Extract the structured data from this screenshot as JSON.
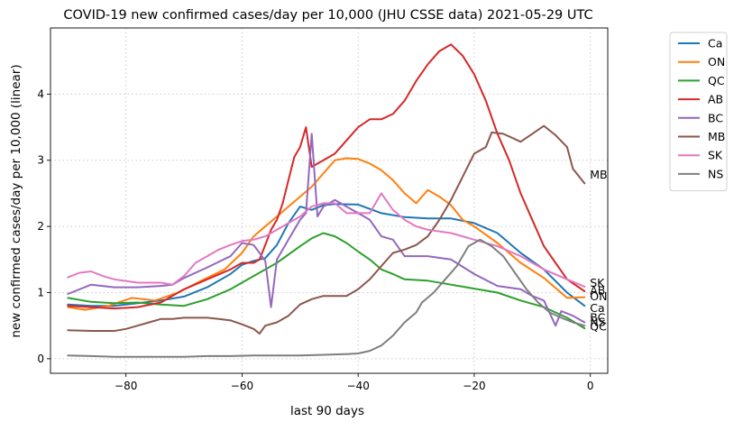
{
  "chart_data": {
    "type": "line",
    "title": "COVID-19 new confirmed cases/day per 10,000 (JHU CSSE data) 2021-05-29 UTC",
    "xlabel": "last 90 days",
    "ylabel": "new confirmed cases/day per 10,000 (linear)",
    "xlim": [
      -93,
      3
    ],
    "ylim": [
      -0.22,
      5.0
    ],
    "x_ticks": [
      -80,
      -60,
      -40,
      -20,
      0
    ],
    "x_tick_labels": [
      "−80",
      "−60",
      "−40",
      "−20",
      "0"
    ],
    "y_ticks": [
      0,
      1,
      2,
      3,
      4
    ],
    "y_tick_labels": [
      "0",
      "1",
      "2",
      "3",
      "4"
    ],
    "grid": true,
    "legend_position": "outside-right-top",
    "series": [
      {
        "name": "Ca",
        "color": "#1f77b4",
        "end_label": "Ca",
        "points": [
          [
            -90,
            0.82
          ],
          [
            -86,
            0.8
          ],
          [
            -82,
            0.8
          ],
          [
            -78,
            0.84
          ],
          [
            -74,
            0.88
          ],
          [
            -70,
            0.94
          ],
          [
            -66,
            1.08
          ],
          [
            -62,
            1.28
          ],
          [
            -60,
            1.42
          ],
          [
            -58,
            1.48
          ],
          [
            -56,
            1.52
          ],
          [
            -54,
            1.72
          ],
          [
            -52,
            2.05
          ],
          [
            -50,
            2.3
          ],
          [
            -48,
            2.25
          ],
          [
            -46,
            2.32
          ],
          [
            -44,
            2.34
          ],
          [
            -40,
            2.33
          ],
          [
            -36,
            2.2
          ],
          [
            -32,
            2.14
          ],
          [
            -28,
            2.12
          ],
          [
            -24,
            2.12
          ],
          [
            -20,
            2.05
          ],
          [
            -16,
            1.9
          ],
          [
            -12,
            1.6
          ],
          [
            -8,
            1.35
          ],
          [
            -4,
            1.0
          ],
          [
            -1,
            0.8
          ]
        ]
      },
      {
        "name": "ON",
        "color": "#ff7f0e",
        "end_label": "ON",
        "points": [
          [
            -90,
            0.78
          ],
          [
            -87,
            0.74
          ],
          [
            -83,
            0.8
          ],
          [
            -79,
            0.92
          ],
          [
            -75,
            0.88
          ],
          [
            -71,
            1.0
          ],
          [
            -67,
            1.18
          ],
          [
            -63,
            1.35
          ],
          [
            -60,
            1.6
          ],
          [
            -58,
            1.85
          ],
          [
            -56,
            2.0
          ],
          [
            -54,
            2.15
          ],
          [
            -52,
            2.3
          ],
          [
            -50,
            2.45
          ],
          [
            -48,
            2.6
          ],
          [
            -46,
            2.8
          ],
          [
            -44,
            3.0
          ],
          [
            -42,
            3.03
          ],
          [
            -40,
            3.02
          ],
          [
            -38,
            2.95
          ],
          [
            -36,
            2.85
          ],
          [
            -34,
            2.7
          ],
          [
            -32,
            2.5
          ],
          [
            -30,
            2.35
          ],
          [
            -28,
            2.55
          ],
          [
            -26,
            2.45
          ],
          [
            -24,
            2.32
          ],
          [
            -22,
            2.1
          ],
          [
            -20,
            2.0
          ],
          [
            -16,
            1.75
          ],
          [
            -12,
            1.45
          ],
          [
            -8,
            1.22
          ],
          [
            -4,
            0.92
          ],
          [
            -1,
            0.93
          ]
        ]
      },
      {
        "name": "QC",
        "color": "#2ca02c",
        "end_label": "QC",
        "points": [
          [
            -90,
            0.92
          ],
          [
            -86,
            0.86
          ],
          [
            -82,
            0.84
          ],
          [
            -78,
            0.85
          ],
          [
            -74,
            0.82
          ],
          [
            -70,
            0.8
          ],
          [
            -66,
            0.9
          ],
          [
            -62,
            1.05
          ],
          [
            -58,
            1.25
          ],
          [
            -54,
            1.45
          ],
          [
            -50,
            1.7
          ],
          [
            -48,
            1.82
          ],
          [
            -46,
            1.9
          ],
          [
            -44,
            1.85
          ],
          [
            -42,
            1.75
          ],
          [
            -40,
            1.62
          ],
          [
            -38,
            1.5
          ],
          [
            -36,
            1.35
          ],
          [
            -34,
            1.28
          ],
          [
            -32,
            1.2
          ],
          [
            -28,
            1.18
          ],
          [
            -24,
            1.12
          ],
          [
            -20,
            1.06
          ],
          [
            -16,
            1.0
          ],
          [
            -12,
            0.88
          ],
          [
            -8,
            0.78
          ],
          [
            -4,
            0.62
          ],
          [
            -1,
            0.46
          ]
        ]
      },
      {
        "name": "AB",
        "color": "#d62728",
        "end_label": "AB",
        "points": [
          [
            -90,
            0.8
          ],
          [
            -86,
            0.78
          ],
          [
            -82,
            0.76
          ],
          [
            -78,
            0.78
          ],
          [
            -74,
            0.85
          ],
          [
            -70,
            1.05
          ],
          [
            -66,
            1.2
          ],
          [
            -62,
            1.35
          ],
          [
            -60,
            1.45
          ],
          [
            -58,
            1.45
          ],
          [
            -57,
            1.5
          ],
          [
            -56,
            1.72
          ],
          [
            -55,
            1.95
          ],
          [
            -54,
            2.1
          ],
          [
            -53,
            2.35
          ],
          [
            -52,
            2.7
          ],
          [
            -51,
            3.05
          ],
          [
            -50,
            3.2
          ],
          [
            -49,
            3.5
          ],
          [
            -48,
            2.9
          ],
          [
            -46,
            3.0
          ],
          [
            -44,
            3.1
          ],
          [
            -42,
            3.3
          ],
          [
            -40,
            3.5
          ],
          [
            -38,
            3.62
          ],
          [
            -36,
            3.62
          ],
          [
            -34,
            3.7
          ],
          [
            -32,
            3.9
          ],
          [
            -30,
            4.2
          ],
          [
            -28,
            4.45
          ],
          [
            -26,
            4.65
          ],
          [
            -24,
            4.75
          ],
          [
            -22,
            4.58
          ],
          [
            -20,
            4.3
          ],
          [
            -18,
            3.9
          ],
          [
            -16,
            3.4
          ],
          [
            -14,
            3.0
          ],
          [
            -12,
            2.5
          ],
          [
            -10,
            2.1
          ],
          [
            -8,
            1.7
          ],
          [
            -6,
            1.45
          ],
          [
            -4,
            1.2
          ],
          [
            -1,
            1.02
          ]
        ]
      },
      {
        "name": "BC",
        "color": "#9467bd",
        "end_label": "BC",
        "points": [
          [
            -90,
            0.98
          ],
          [
            -86,
            1.12
          ],
          [
            -82,
            1.08
          ],
          [
            -78,
            1.08
          ],
          [
            -74,
            1.1
          ],
          [
            -72,
            1.12
          ],
          [
            -70,
            1.22
          ],
          [
            -66,
            1.38
          ],
          [
            -62,
            1.55
          ],
          [
            -60,
            1.75
          ],
          [
            -58,
            1.72
          ],
          [
            -56,
            1.48
          ],
          [
            -55,
            0.78
          ],
          [
            -54,
            1.5
          ],
          [
            -52,
            1.8
          ],
          [
            -50,
            2.1
          ],
          [
            -49,
            2.2
          ],
          [
            -48,
            3.4
          ],
          [
            -47,
            2.15
          ],
          [
            -46,
            2.3
          ],
          [
            -44,
            2.4
          ],
          [
            -42,
            2.3
          ],
          [
            -40,
            2.2
          ],
          [
            -38,
            2.1
          ],
          [
            -36,
            1.85
          ],
          [
            -34,
            1.8
          ],
          [
            -32,
            1.55
          ],
          [
            -28,
            1.55
          ],
          [
            -24,
            1.5
          ],
          [
            -20,
            1.28
          ],
          [
            -16,
            1.1
          ],
          [
            -12,
            1.05
          ],
          [
            -10,
            0.95
          ],
          [
            -8,
            0.88
          ],
          [
            -6,
            0.5
          ],
          [
            -5,
            0.72
          ],
          [
            -3,
            0.65
          ],
          [
            -1,
            0.55
          ]
        ]
      },
      {
        "name": "MB",
        "color": "#8c564b",
        "end_label": "MB",
        "points": [
          [
            -90,
            0.43
          ],
          [
            -86,
            0.42
          ],
          [
            -82,
            0.42
          ],
          [
            -80,
            0.45
          ],
          [
            -78,
            0.5
          ],
          [
            -76,
            0.55
          ],
          [
            -74,
            0.6
          ],
          [
            -72,
            0.6
          ],
          [
            -70,
            0.62
          ],
          [
            -68,
            0.62
          ],
          [
            -66,
            0.62
          ],
          [
            -64,
            0.6
          ],
          [
            -62,
            0.58
          ],
          [
            -60,
            0.52
          ],
          [
            -58,
            0.45
          ],
          [
            -57,
            0.38
          ],
          [
            -56,
            0.5
          ],
          [
            -54,
            0.55
          ],
          [
            -52,
            0.65
          ],
          [
            -50,
            0.82
          ],
          [
            -48,
            0.9
          ],
          [
            -46,
            0.95
          ],
          [
            -44,
            0.95
          ],
          [
            -42,
            0.95
          ],
          [
            -40,
            1.05
          ],
          [
            -38,
            1.2
          ],
          [
            -36,
            1.4
          ],
          [
            -34,
            1.6
          ],
          [
            -32,
            1.65
          ],
          [
            -30,
            1.72
          ],
          [
            -28,
            1.85
          ],
          [
            -26,
            2.1
          ],
          [
            -24,
            2.4
          ],
          [
            -22,
            2.75
          ],
          [
            -20,
            3.1
          ],
          [
            -18,
            3.2
          ],
          [
            -17,
            3.42
          ],
          [
            -15,
            3.4
          ],
          [
            -12,
            3.28
          ],
          [
            -10,
            3.4
          ],
          [
            -8,
            3.52
          ],
          [
            -6,
            3.38
          ],
          [
            -4,
            3.2
          ],
          [
            -3,
            2.87
          ],
          [
            -1,
            2.65
          ]
        ]
      },
      {
        "name": "SK",
        "color": "#e377c2",
        "end_label": "SK",
        "points": [
          [
            -90,
            1.23
          ],
          [
            -88,
            1.3
          ],
          [
            -86,
            1.32
          ],
          [
            -84,
            1.25
          ],
          [
            -82,
            1.2
          ],
          [
            -78,
            1.15
          ],
          [
            -74,
            1.15
          ],
          [
            -72,
            1.12
          ],
          [
            -70,
            1.25
          ],
          [
            -68,
            1.45
          ],
          [
            -66,
            1.55
          ],
          [
            -64,
            1.65
          ],
          [
            -62,
            1.72
          ],
          [
            -60,
            1.78
          ],
          [
            -58,
            1.8
          ],
          [
            -56,
            1.85
          ],
          [
            -54,
            1.95
          ],
          [
            -52,
            2.05
          ],
          [
            -50,
            2.15
          ],
          [
            -48,
            2.3
          ],
          [
            -46,
            2.35
          ],
          [
            -44,
            2.35
          ],
          [
            -42,
            2.2
          ],
          [
            -40,
            2.2
          ],
          [
            -38,
            2.2
          ],
          [
            -36,
            2.5
          ],
          [
            -34,
            2.25
          ],
          [
            -32,
            2.1
          ],
          [
            -30,
            2.0
          ],
          [
            -28,
            1.95
          ],
          [
            -24,
            1.9
          ],
          [
            -20,
            1.8
          ],
          [
            -16,
            1.7
          ],
          [
            -12,
            1.55
          ],
          [
            -8,
            1.35
          ],
          [
            -4,
            1.2
          ],
          [
            -1,
            1.09
          ]
        ]
      },
      {
        "name": "NS",
        "color": "#7f7f7f",
        "end_label": "NS",
        "points": [
          [
            -90,
            0.05
          ],
          [
            -86,
            0.04
          ],
          [
            -82,
            0.03
          ],
          [
            -78,
            0.03
          ],
          [
            -74,
            0.03
          ],
          [
            -70,
            0.03
          ],
          [
            -66,
            0.04
          ],
          [
            -62,
            0.04
          ],
          [
            -58,
            0.05
          ],
          [
            -54,
            0.05
          ],
          [
            -50,
            0.05
          ],
          [
            -46,
            0.06
          ],
          [
            -42,
            0.07
          ],
          [
            -40,
            0.08
          ],
          [
            -38,
            0.12
          ],
          [
            -36,
            0.2
          ],
          [
            -34,
            0.35
          ],
          [
            -32,
            0.55
          ],
          [
            -30,
            0.7
          ],
          [
            -29,
            0.85
          ],
          [
            -27,
            1.0
          ],
          [
            -25,
            1.2
          ],
          [
            -23,
            1.4
          ],
          [
            -21,
            1.7
          ],
          [
            -19,
            1.8
          ],
          [
            -17,
            1.7
          ],
          [
            -15,
            1.55
          ],
          [
            -13,
            1.3
          ],
          [
            -11,
            1.05
          ],
          [
            -9,
            0.85
          ],
          [
            -7,
            0.7
          ],
          [
            -5,
            0.62
          ],
          [
            -3,
            0.55
          ],
          [
            -1,
            0.5
          ]
        ]
      }
    ],
    "end_labels": [
      {
        "text": "MB",
        "y": 2.78
      },
      {
        "text": "SK",
        "y": 1.14
      },
      {
        "text": "AB",
        "y": 1.03
      },
      {
        "text": "ON",
        "y": 0.94
      },
      {
        "text": "Ca",
        "y": 0.76
      },
      {
        "text": "BC",
        "y": 0.62
      },
      {
        "text": "NS",
        "y": 0.55
      },
      {
        "text": "QC",
        "y": 0.48
      }
    ]
  }
}
